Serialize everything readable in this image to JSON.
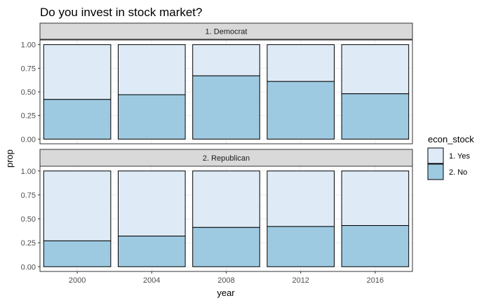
{
  "chart_data": {
    "type": "bar",
    "stacked": true,
    "title": "Do you invest in stock market?",
    "xlabel": "year",
    "ylabel": "prop",
    "categories": [
      "2000",
      "2004",
      "2008",
      "2012",
      "2016"
    ],
    "ylim": [
      0,
      1
    ],
    "yticks": [
      "0.00",
      "0.25",
      "0.50",
      "0.75",
      "1.00"
    ],
    "grid": true,
    "legend": {
      "title": "econ_stock",
      "position": "right",
      "entries": [
        {
          "label": "1. Yes",
          "color": "#deebf7"
        },
        {
          "label": "2. No",
          "color": "#9ecae1"
        }
      ]
    },
    "panels": [
      {
        "label": "1. Democrat",
        "series": [
          {
            "name": "2. No",
            "values": [
              0.42,
              0.47,
              0.67,
              0.61,
              0.48
            ]
          },
          {
            "name": "1. Yes",
            "values": [
              0.58,
              0.53,
              0.33,
              0.39,
              0.52
            ]
          }
        ]
      },
      {
        "label": "2. Republican",
        "series": [
          {
            "name": "2. No",
            "values": [
              0.27,
              0.32,
              0.41,
              0.42,
              0.43
            ]
          },
          {
            "name": "1. Yes",
            "values": [
              0.73,
              0.68,
              0.59,
              0.58,
              0.57
            ]
          }
        ]
      }
    ]
  }
}
